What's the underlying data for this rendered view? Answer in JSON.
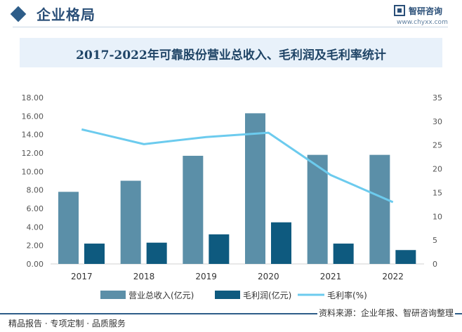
{
  "header": {
    "title": "企业格局",
    "brand": "智研咨询",
    "url": "www.chyxx.com"
  },
  "chart_data": {
    "type": "bar",
    "title": "2017-2022年可靠股份营业总收入、毛利润及毛利率统计",
    "categories": [
      "2017",
      "2018",
      "2019",
      "2020",
      "2021",
      "2022"
    ],
    "series": [
      {
        "name": "营业总收入(亿元)",
        "type": "bar",
        "axis": "left",
        "color": "#5b8fa8",
        "values": [
          7.8,
          9.0,
          11.7,
          16.3,
          11.8,
          11.8
        ]
      },
      {
        "name": "毛利润(亿元)",
        "type": "bar",
        "axis": "left",
        "color": "#0e5a7f",
        "values": [
          2.2,
          2.3,
          3.2,
          4.5,
          2.2,
          1.5
        ]
      },
      {
        "name": "毛利率(%)",
        "type": "line",
        "axis": "right",
        "color": "#6ccbee",
        "values": [
          28.3,
          25.2,
          26.7,
          27.6,
          18.7,
          13.0
        ]
      }
    ],
    "y_left": {
      "min": 0,
      "max": 18,
      "step": 2,
      "ticks": [
        "0.00",
        "2.00",
        "4.00",
        "6.00",
        "8.00",
        "10.00",
        "12.00",
        "14.00",
        "16.00",
        "18.00"
      ]
    },
    "y_right": {
      "min": 0,
      "max": 35,
      "step": 5,
      "ticks": [
        "0",
        "5",
        "10",
        "15",
        "20",
        "25",
        "30",
        "35"
      ]
    },
    "legend_position": "bottom",
    "grid": false
  },
  "footer": {
    "left": "精品报告 · 专项定制 · 品质服务",
    "right": "资料来源：企业年报、智研咨询整理"
  }
}
